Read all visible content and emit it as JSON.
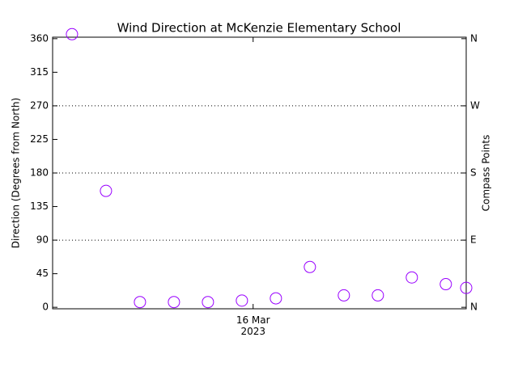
{
  "chart_data": {
    "type": "scatter",
    "title": "Wind Direction at McKenzie Elementary School",
    "ylabel": "Direction (Degrees from North)",
    "y2label": "Compass Points",
    "x": [
      0,
      1,
      2,
      3,
      4,
      5,
      6,
      7,
      8,
      9,
      10,
      11,
      11.6
    ],
    "xlim": [
      -0.57,
      11.6
    ],
    "xticks": [
      {
        "value": 5.33,
        "label": "16 Mar\n2023"
      }
    ],
    "series": [
      {
        "color": "#9900ff",
        "values": [
          366,
          156,
          7,
          7,
          7,
          9,
          12,
          54,
          16,
          16,
          40,
          31,
          26
        ]
      }
    ],
    "ylim": [
      -2,
      362
    ],
    "yticks": [
      0,
      45,
      90,
      135,
      180,
      225,
      270,
      315,
      360
    ],
    "y2lim": [
      -2,
      362
    ],
    "y2ticks": [
      {
        "value": 0,
        "label": "N"
      },
      {
        "value": 90,
        "label": "E"
      },
      {
        "value": 180,
        "label": "S"
      },
      {
        "value": 270,
        "label": "W"
      },
      {
        "value": 360,
        "label": "N"
      }
    ],
    "grid": true
  }
}
